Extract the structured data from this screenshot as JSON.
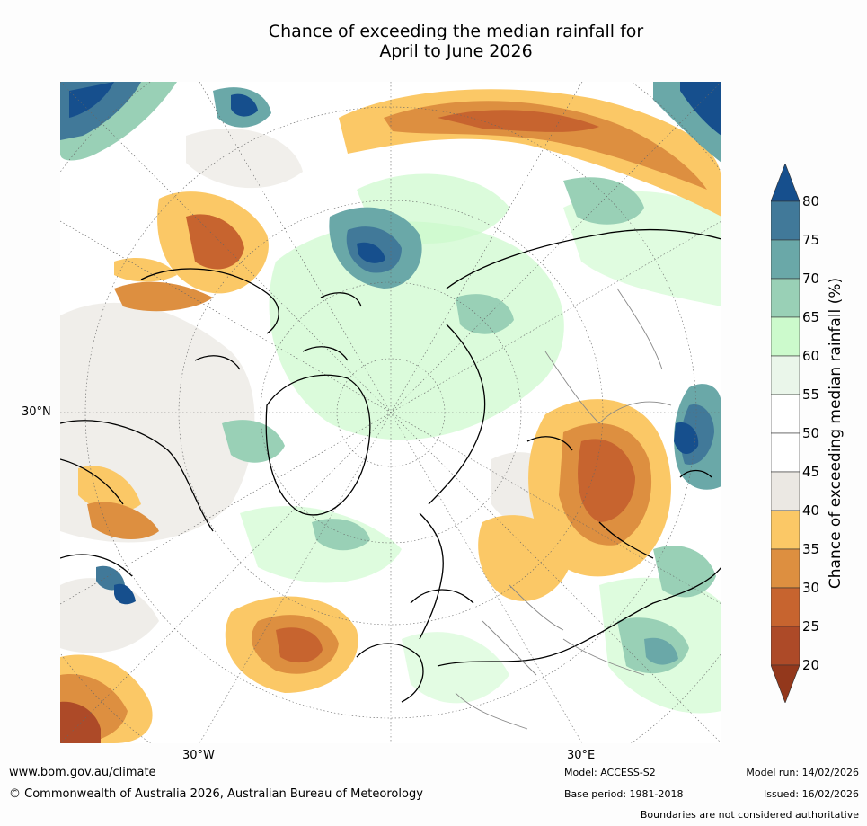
{
  "title": {
    "line1": "Chance of exceeding the median rainfall for",
    "line2": "April to June 2026"
  },
  "map": {
    "projection": "north-polar stereographic",
    "lat_label": "30°N",
    "lon_label_west": "30°W",
    "lon_label_east": "30°E"
  },
  "colorbar": {
    "title": "Chance of exceeding median rainfall (%)",
    "ticks": [
      "20",
      "25",
      "30",
      "35",
      "40",
      "45",
      "50",
      "55",
      "60",
      "65",
      "70",
      "75",
      "80"
    ],
    "bands": [
      {
        "range": "<20",
        "color": "#93381c"
      },
      {
        "range": "20-25",
        "color": "#ad4a28"
      },
      {
        "range": "25-30",
        "color": "#c7642f"
      },
      {
        "range": "30-35",
        "color": "#dd8f40"
      },
      {
        "range": "35-40",
        "color": "#fbc866"
      },
      {
        "range": "40-45",
        "color": "#ebe8e3"
      },
      {
        "range": "45-50",
        "color": "#ffffff"
      },
      {
        "range": "50-55",
        "color": "#ffffff"
      },
      {
        "range": "55-60",
        "color": "#eaf6ea"
      },
      {
        "range": "60-65",
        "color": "#ccfacc"
      },
      {
        "range": "65-70",
        "color": "#99d0b6"
      },
      {
        "range": "70-75",
        "color": "#6aa8a8"
      },
      {
        "range": "75-80",
        "color": "#417999"
      },
      {
        "range": ">80",
        "color": "#164f8d"
      }
    ]
  },
  "footer": {
    "url": "www.bom.gov.au/climate",
    "copyright": "© Commonwealth of Australia 2026, Australian Bureau of Meteorology",
    "model": "Model: ACCESS-S2",
    "base_period": "Base period: 1981-2018",
    "model_run": "Model run: 14/02/2026",
    "issued": "Issued: 16/02/2026",
    "disclaimer": "Boundaries are not considered authoritative"
  }
}
